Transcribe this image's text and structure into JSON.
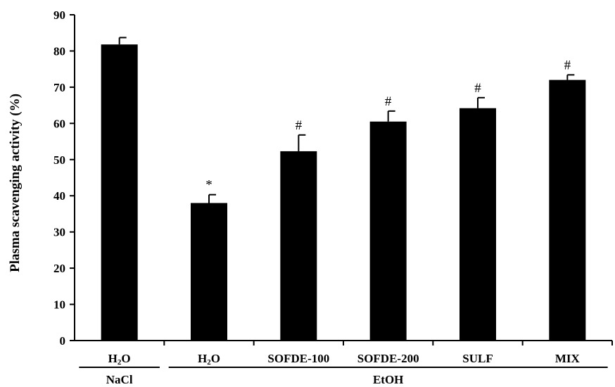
{
  "chart_data": {
    "type": "bar",
    "ylabel": "Plasma scavenging activity (%)",
    "ylim": [
      0,
      90
    ],
    "yticks": [
      0,
      10,
      20,
      30,
      40,
      50,
      60,
      70,
      80,
      90
    ],
    "categories": [
      {
        "main": "H",
        "sub": "2",
        "rest": "O"
      },
      {
        "main": "H",
        "sub": "2",
        "rest": "O"
      },
      {
        "main": "SOFDE-100",
        "sub": "",
        "rest": ""
      },
      {
        "main": "SOFDE-200",
        "sub": "",
        "rest": ""
      },
      {
        "main": "SULF",
        "sub": "",
        "rest": ""
      },
      {
        "main": "MIX",
        "sub": "",
        "rest": ""
      }
    ],
    "values": [
      81.8,
      38.0,
      52.3,
      60.5,
      64.2,
      72.0
    ],
    "errors": [
      1.9,
      2.3,
      4.5,
      2.9,
      2.9,
      1.4
    ],
    "annotations": [
      "",
      "*",
      "#",
      "#",
      "#",
      "#"
    ],
    "groups": [
      {
        "label": "NaCl",
        "start": 0,
        "end": 0
      },
      {
        "label": "EtOH",
        "start": 1,
        "end": 5
      }
    ],
    "grid": false,
    "bar_color": "#000000"
  }
}
